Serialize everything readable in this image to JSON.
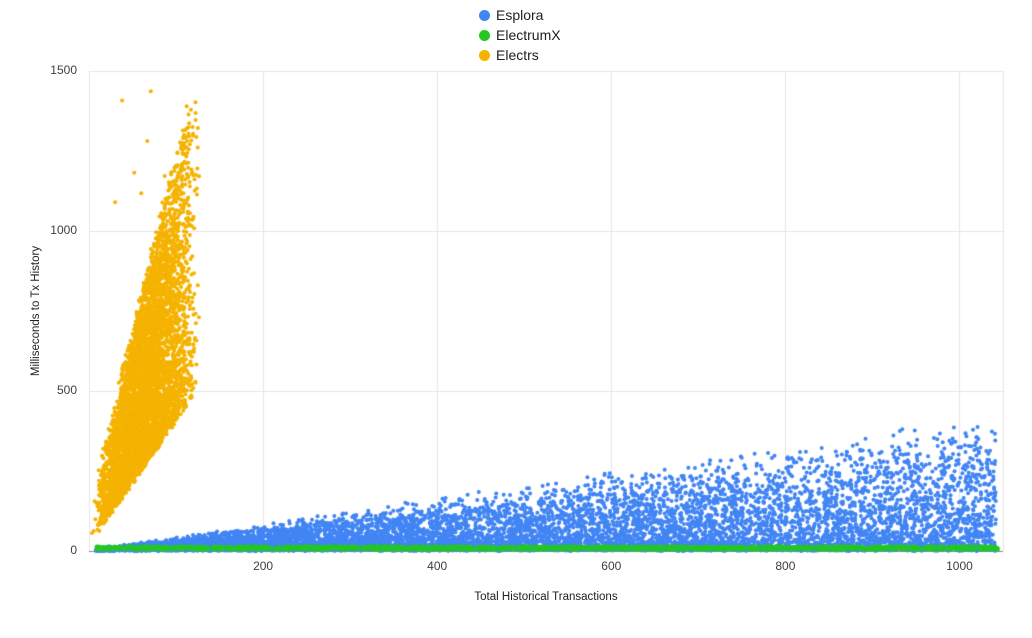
{
  "chart_data": {
    "type": "scatter",
    "title": "",
    "xlabel": "Total Historical Transactions",
    "ylabel": "Milliseconds to Tx History",
    "xlim": [
      0,
      1050
    ],
    "ylim": [
      0,
      1500
    ],
    "x_ticks": [
      200,
      400,
      600,
      800,
      1000
    ],
    "y_ticks": [
      0,
      500,
      1000,
      1500
    ],
    "grid": true,
    "legend_position": "top-center",
    "background": "#ffffff",
    "gridline_color": "#e6e6e6",
    "baseline_color": "#8a8a8a",
    "tick_label_color": "#3c4043",
    "seed": 42,
    "series": [
      {
        "name": "Esplora",
        "color": "#4285f4",
        "marker_radius": 2,
        "points": 9000,
        "distribution": {
          "kind": "wedge",
          "x_min": 8,
          "x_max": 1042,
          "slope_max": 0.33,
          "density_pow": 1.9,
          "y_noise": 6,
          "description": "Latency grows roughly linearly with transaction count; dense mass near 0-80 ms, upper envelope ~0.33x reaching ~350 ms at x~1040"
        }
      },
      {
        "name": "ElectrumX",
        "color": "#24c724",
        "marker_radius": 1.7,
        "points": 2600,
        "distribution": {
          "kind": "band",
          "x_min": 8,
          "x_max": 1045,
          "y_min": 3,
          "y_max": 16,
          "description": "Flat near-zero latency band (~3-16 ms) across the whole x range"
        }
      },
      {
        "name": "Electrs",
        "color": "#f5b300",
        "marker_radius": 2,
        "points": 5200,
        "distribution": {
          "kind": "plume",
          "x_min": 6,
          "x_max": 126,
          "y_base": 50,
          "y_slope": 470,
          "spread_base": 120,
          "spread_slope": 880,
          "outliers": [
            [
              38,
              1408
            ],
            [
              71,
              1437
            ],
            [
              67,
              1281
            ],
            [
              94,
              1140
            ],
            [
              87,
              1172
            ],
            [
              60,
              1118
            ],
            [
              52,
              1182
            ],
            [
              101,
              1127
            ],
            [
              30,
              1090
            ]
          ],
          "description": "Steep cloud confined to x~5-130 with latency ~50-1150 ms and outliers up to ~1440 ms"
        }
      }
    ]
  }
}
